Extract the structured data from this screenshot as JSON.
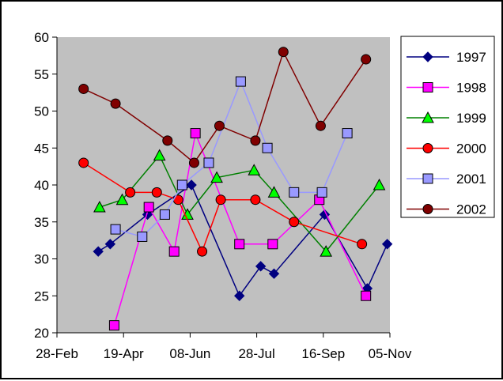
{
  "chart_data": {
    "type": "line",
    "title": "",
    "xlabel": "",
    "ylabel": "",
    "plot_background": "#C0C0C0",
    "grid": false,
    "legend_position": "right",
    "xlim": [
      "2003-02-28",
      "2003-11-05"
    ],
    "ylim": [
      20,
      60
    ],
    "x_ticks": [
      {
        "date": "2003-02-28",
        "label": "28-Feb"
      },
      {
        "date": "2003-04-19",
        "label": "19-Apr"
      },
      {
        "date": "2003-06-08",
        "label": "08-Jun"
      },
      {
        "date": "2003-07-28",
        "label": "28-Jul"
      },
      {
        "date": "2003-09-16",
        "label": "16-Sep"
      },
      {
        "date": "2003-11-05",
        "label": "05-Nov"
      }
    ],
    "y_ticks": [
      20,
      25,
      30,
      35,
      40,
      45,
      50,
      55,
      60
    ],
    "series": [
      {
        "name": "1997",
        "color": "#000080",
        "marker": "diamond",
        "points": [
          {
            "x": "2003-03-31",
            "y": 31
          },
          {
            "x": "2003-04-09",
            "y": 32
          },
          {
            "x": "2003-05-07",
            "y": 36
          },
          {
            "x": "2003-06-09",
            "y": 40
          },
          {
            "x": "2003-07-15",
            "y": 25
          },
          {
            "x": "2003-07-31",
            "y": 29
          },
          {
            "x": "2003-08-10",
            "y": 28
          },
          {
            "x": "2003-09-17",
            "y": 36
          },
          {
            "x": "2003-10-19",
            "y": 26
          },
          {
            "x": "2003-11-03",
            "y": 32
          }
        ]
      },
      {
        "name": "1998",
        "color": "#FF00FF",
        "marker": "square",
        "points": [
          {
            "x": "2003-04-12",
            "y": 21
          },
          {
            "x": "2003-05-08",
            "y": 37
          },
          {
            "x": "2003-05-27",
            "y": 31
          },
          {
            "x": "2003-06-12",
            "y": 47
          },
          {
            "x": "2003-07-15",
            "y": 32
          },
          {
            "x": "2003-08-09",
            "y": 32
          },
          {
            "x": "2003-09-13",
            "y": 38
          },
          {
            "x": "2003-10-18",
            "y": 25
          }
        ]
      },
      {
        "name": "1999",
        "color": "#008000",
        "marker": "triangle",
        "fill": "#00FF00",
        "points": [
          {
            "x": "2003-04-01",
            "y": 37
          },
          {
            "x": "2003-04-18",
            "y": 38
          },
          {
            "x": "2003-05-16",
            "y": 44
          },
          {
            "x": "2003-06-06",
            "y": 36
          },
          {
            "x": "2003-06-28",
            "y": 41
          },
          {
            "x": "2003-07-26",
            "y": 42
          },
          {
            "x": "2003-08-10",
            "y": 39
          },
          {
            "x": "2003-09-18",
            "y": 31
          },
          {
            "x": "2003-10-28",
            "y": 40
          }
        ]
      },
      {
        "name": "2000",
        "color": "#FF0000",
        "marker": "circle",
        "points": [
          {
            "x": "2003-03-20",
            "y": 43
          },
          {
            "x": "2003-04-24",
            "y": 39
          },
          {
            "x": "2003-05-14",
            "y": 39
          },
          {
            "x": "2003-05-30",
            "y": 38
          },
          {
            "x": "2003-06-17",
            "y": 31
          },
          {
            "x": "2003-07-01",
            "y": 38
          },
          {
            "x": "2003-07-27",
            "y": 38
          },
          {
            "x": "2003-08-25",
            "y": 35
          },
          {
            "x": "2003-10-15",
            "y": 32
          }
        ]
      },
      {
        "name": "2001",
        "color": "#9999FF",
        "marker": "square",
        "points": [
          {
            "x": "2003-04-13",
            "y": 34
          },
          {
            "x": "2003-05-03",
            "y": 33
          },
          {
            "x": "2003-05-20",
            "y": 36
          },
          {
            "x": "2003-06-02",
            "y": 40
          },
          {
            "x": "2003-06-22",
            "y": 43
          },
          {
            "x": "2003-07-16",
            "y": 54
          },
          {
            "x": "2003-08-05",
            "y": 45
          },
          {
            "x": "2003-08-25",
            "y": 39
          },
          {
            "x": "2003-09-15",
            "y": 39
          },
          {
            "x": "2003-10-04",
            "y": 47
          }
        ]
      },
      {
        "name": "2002",
        "color": "#800000",
        "marker": "circle",
        "points": [
          {
            "x": "2003-03-20",
            "y": 53
          },
          {
            "x": "2003-04-13",
            "y": 51
          },
          {
            "x": "2003-05-22",
            "y": 46
          },
          {
            "x": "2003-06-11",
            "y": 43
          },
          {
            "x": "2003-06-30",
            "y": 48
          },
          {
            "x": "2003-07-27",
            "y": 46
          },
          {
            "x": "2003-08-17",
            "y": 58
          },
          {
            "x": "2003-09-14",
            "y": 48
          },
          {
            "x": "2003-10-18",
            "y": 57
          }
        ]
      }
    ]
  }
}
